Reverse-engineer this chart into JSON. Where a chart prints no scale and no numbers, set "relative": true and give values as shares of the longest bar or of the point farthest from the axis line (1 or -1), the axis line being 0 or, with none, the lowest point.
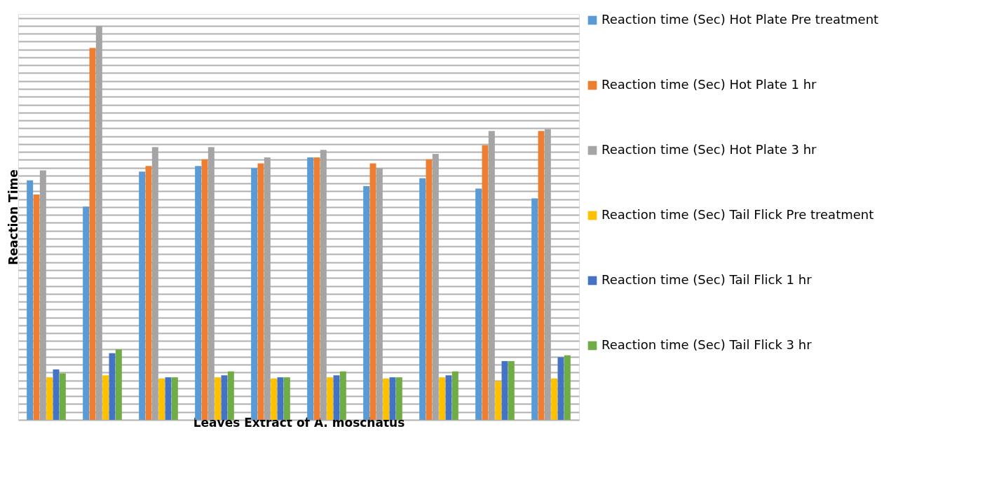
{
  "chart_data": {
    "type": "bar",
    "relative": true,
    "xlabel": "Leaves Extract of A. moschatus",
    "ylabel": "Reaction Time",
    "categories": [
      null,
      null,
      null,
      null,
      null,
      null,
      null,
      null,
      null,
      null
    ],
    "series": [
      {
        "name": "Reaction time (Sec) Hot Plate Pre treatment",
        "color": "#5b9bd5",
        "values": [
          0.608,
          0.541,
          0.63,
          0.644,
          0.639,
          0.666,
          0.593,
          0.613,
          0.587,
          0.562
        ]
      },
      {
        "name": "Reaction time (Sec) Hot Plate 1 hr",
        "color": "#ed7d31",
        "values": [
          0.572,
          0.944,
          0.644,
          0.661,
          0.651,
          0.666,
          0.651,
          0.661,
          0.697,
          0.733
        ]
      },
      {
        "name": "Reaction time (Sec) Hot Plate 3 hr",
        "color": "#a5a5a5",
        "values": [
          0.633,
          1.0,
          0.692,
          0.692,
          0.666,
          0.685,
          0.639,
          0.675,
          0.733,
          0.738
        ]
      },
      {
        "name": "Reaction time (Sec) Tail Flick Pre treatment",
        "color": "#ffc000",
        "values": [
          0.108,
          0.113,
          0.105,
          0.108,
          0.105,
          0.108,
          0.105,
          0.108,
          0.098,
          0.105
        ]
      },
      {
        "name": "Reaction time (Sec) Tail Flick 1 hr",
        "color": "#4472c4",
        "values": [
          0.128,
          0.169,
          0.108,
          0.113,
          0.108,
          0.113,
          0.108,
          0.113,
          0.149,
          0.159
        ]
      },
      {
        "name": "Reaction time (Sec) Tail Flick 3 hr",
        "color": "#70ad47",
        "values": [
          0.118,
          0.179,
          0.108,
          0.123,
          0.108,
          0.123,
          0.108,
          0.123,
          0.149,
          0.164
        ]
      }
    ],
    "grid": "y",
    "legend": "right",
    "tick_labels": false
  }
}
